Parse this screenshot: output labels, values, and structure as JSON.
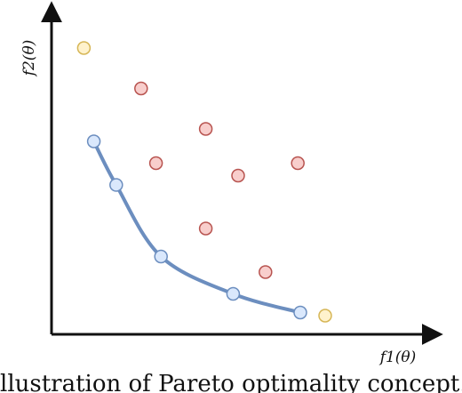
{
  "figure": {
    "y_axis_label": "f2(θ)",
    "x_axis_label": "f1(θ)",
    "caption_fragment": "llustration of Pareto optimality concept. The"
  },
  "points": {
    "pareto_front": [
      {
        "x": 0.17,
        "y": 0.62
      },
      {
        "x": 0.26,
        "y": 0.48
      },
      {
        "x": 0.44,
        "y": 0.25
      },
      {
        "x": 0.73,
        "y": 0.13
      },
      {
        "x": 1.0,
        "y": 0.07
      }
    ],
    "dominated": [
      {
        "x": 0.36,
        "y": 0.79
      },
      {
        "x": 0.62,
        "y": 0.66
      },
      {
        "x": 0.42,
        "y": 0.55
      },
      {
        "x": 0.75,
        "y": 0.51
      },
      {
        "x": 0.99,
        "y": 0.55
      },
      {
        "x": 0.62,
        "y": 0.34
      },
      {
        "x": 0.86,
        "y": 0.2
      }
    ],
    "highlighted": [
      {
        "x": 0.13,
        "y": 0.92
      },
      {
        "x": 1.1,
        "y": 0.06
      }
    ]
  },
  "colors": {
    "axis": "#111111",
    "curve": "#6c8ebf",
    "pareto_fill": "#dae8fc",
    "pareto_stroke": "#6c8ebf",
    "dominated_fill": "#f8cecc",
    "dominated_stroke": "#b85450",
    "highlighted_fill": "#fff2cc",
    "highlighted_stroke": "#d6b656"
  }
}
